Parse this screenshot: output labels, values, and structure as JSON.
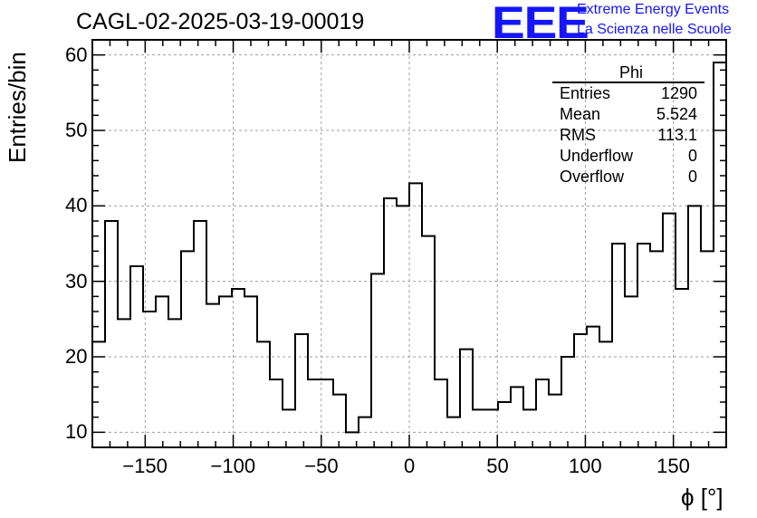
{
  "title": "CAGL-02-2025-03-19-00019",
  "logo": {
    "mark": "EEE",
    "line1": "Extreme Energy Events",
    "line2": "La Scienza nelle Scuole",
    "color": "#1515ff"
  },
  "stats": {
    "name": "Phi",
    "rows": [
      {
        "label": "Entries",
        "value": "1290"
      },
      {
        "label": "Mean",
        "value": "5.524"
      },
      {
        "label": "RMS",
        "value": "113.1"
      },
      {
        "label": "Underflow",
        "value": "0"
      },
      {
        "label": "Overflow",
        "value": "0"
      }
    ]
  },
  "chart_data": {
    "type": "bar",
    "style": "step-histogram",
    "title": "CAGL-02-2025-03-19-00019",
    "xlabel": "ϕ [°]",
    "ylabel": "Entries/bin",
    "xlim": [
      -180,
      180
    ],
    "ylim": [
      8,
      62
    ],
    "bin_width": 7.2,
    "x_ticks": [
      -150,
      -100,
      -50,
      0,
      50,
      100,
      150
    ],
    "x_tick_labels": [
      "−150",
      "−100",
      "−50",
      "0",
      "50",
      "100",
      "150"
    ],
    "y_ticks": [
      10,
      20,
      30,
      40,
      50,
      60
    ],
    "grid": true,
    "values": [
      22,
      38,
      25,
      32,
      26,
      28,
      25,
      34,
      38,
      27,
      28,
      29,
      28,
      22,
      17,
      13,
      23,
      17,
      17,
      15,
      10,
      12,
      31,
      41,
      40,
      43,
      36,
      17,
      12,
      21,
      13,
      13,
      14,
      16,
      13,
      17,
      15,
      20,
      23,
      24,
      22,
      35,
      28,
      35,
      34,
      39,
      29,
      40,
      34,
      59
    ]
  }
}
